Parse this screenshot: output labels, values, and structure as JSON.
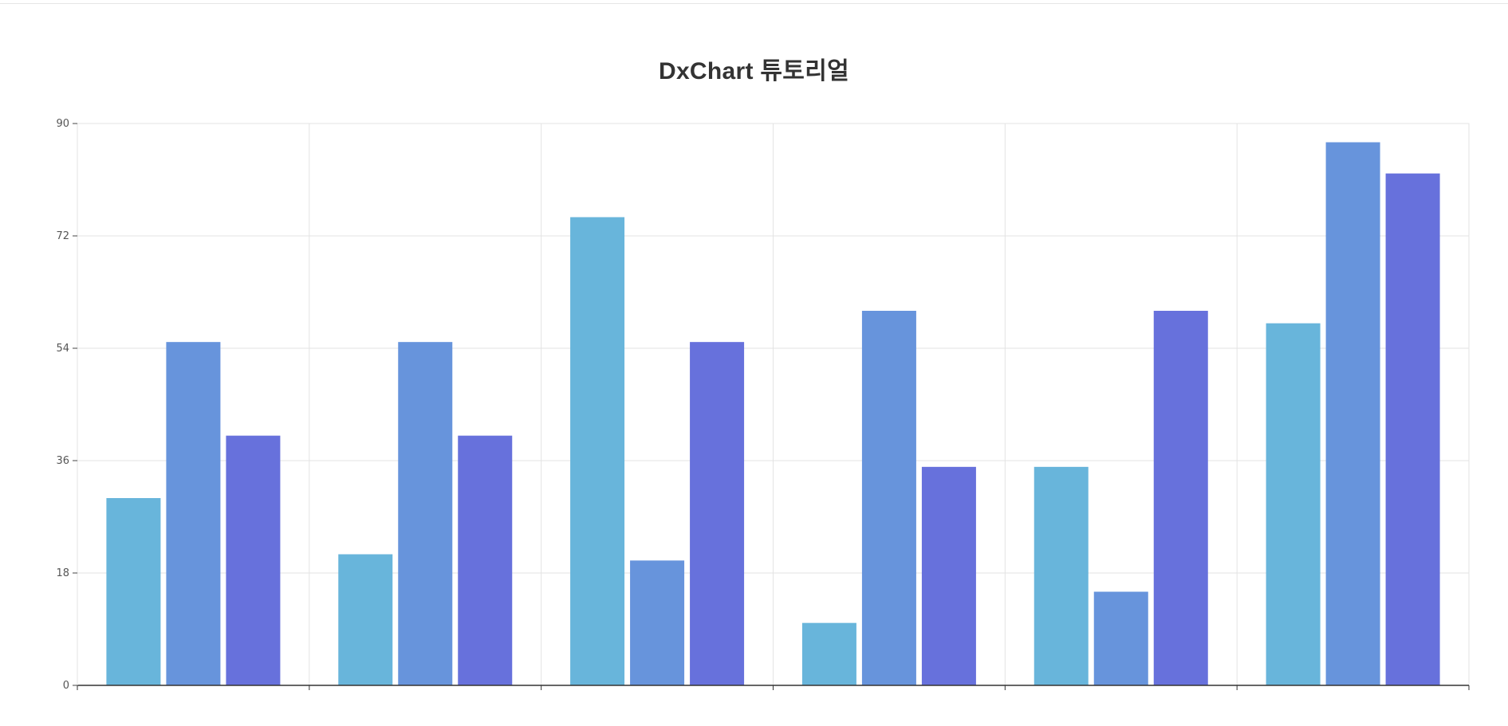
{
  "chart_data": {
    "type": "bar",
    "title": "DxChart 튜토리얼",
    "xlabel": "",
    "ylabel": "",
    "ylim": [
      0,
      90
    ],
    "yticks": [
      "0",
      "18",
      "36",
      "54",
      "72",
      "90"
    ],
    "grid": true,
    "categories": [
      "",
      "",
      "",
      "",
      "",
      ""
    ],
    "series": [
      {
        "color": "#68b5db",
        "values": [
          30,
          21,
          75,
          10,
          35,
          58
        ]
      },
      {
        "color": "#6794dc",
        "values": [
          55,
          55,
          20,
          60,
          15,
          87
        ]
      },
      {
        "color": "#6771dc",
        "values": [
          40,
          40,
          55,
          35,
          60,
          82
        ]
      }
    ]
  }
}
